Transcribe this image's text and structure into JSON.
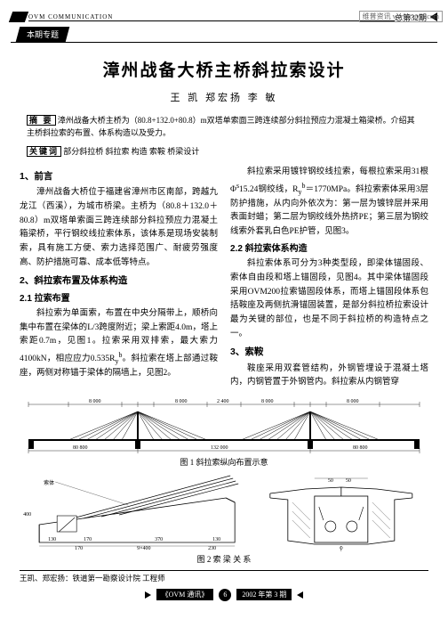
{
  "watermark": "维普资讯 www.cqvip.com",
  "header": {
    "comm_label": "OVM COMMUNICATION",
    "issue": "总第32期",
    "section_tab": "本期专题"
  },
  "title": "漳州战备大桥主桥斜拉索设计",
  "authors": "王  凯   郑宏扬   李   敏",
  "abstract": {
    "label": "摘  要",
    "text": "漳州战备大桥主桥为（80.8+132.0+80.8）m双塔单索面三跨连续部分斜拉预应力混凝土箱梁桥。介绍其主桥斜拉索的布置、体系构造以及受力。"
  },
  "keywords": {
    "label": "关键词",
    "text": "部分斜拉桥  斜拉索  构造  索鞍  桥梁设计"
  },
  "left_col": {
    "h1": "1、前言",
    "p1": "漳州战备大桥位于福建省漳州市区南部，跨越九龙江（西溪），为城市桥梁。主桥为（80.8＋132.0＋80.8）m双塔单索面三跨连续部分斜拉预应力混凝土箱梁桥，平行钢绞线拉索体系，该体系是现场安装制索，具有施工方便、索力选择范围广、耐疲劳强度高、防护措施可靠、成本低等特点。",
    "h2": "2、斜拉索布置及体系构造",
    "h21": "2.1 拉索布置",
    "p2": "斜拉索为单面索，布置在中央分隔带上，顺桥向集中布置在梁体的L/3跨度附近；梁上索距4.0m，塔上索距0.7m，见图1。拉索采用双排索，最大索力4100kN，相应应力0.535R<sub>y</sub><sup>b</sup>。斜拉索在塔上部通过鞍座，两侧对称锚于梁体的隔墙上，见图2。"
  },
  "right_col": {
    "p1": "斜拉索采用镀锌钢绞线拉索，每根拉索采用31根Φ<sup>s</sup>15.24钢绞线，R<sub>y</sub><sup>b</sup>＝1770MPa。斜拉索索体采用3层防护措施，从内向外依次为：第一层为镀锌层并采用表面封蜡；第二层为钢绞线外热挤PE；第三层为钢绞线索外套乳白色PE护管，见图3。",
    "h22": "2.2 斜拉索体系构造",
    "p2": "斜拉索体系可分为3种类型段，即梁体锚固段、索体自由段和塔上锚固段，见图4。其中梁体锚固段采用OVM200拉索锚固段体系，而塔上锚固段体系包括鞍座及两侧抗滑锚固装置，是部分斜拉桥拉索设计最为关键的部位，也是不同于斜拉桥的构造特点之一。",
    "h3": "3、索鞍",
    "p3": "鞍座采用双套管结构，外钢管埋设于混凝土塔内，内钢管置于外钢管内。斜拉索从内钢管穿"
  },
  "fig1": {
    "caption": "图 1   斜拉索纵向布置示意",
    "spans": [
      "8 000",
      "8 000",
      "2 400",
      "8 000",
      "8 000"
    ],
    "dims": [
      "80 800",
      "132 000",
      "80 800"
    ]
  },
  "fig2": {
    "caption": "图 2   索 梁 关 系",
    "left_nums": [
      "400",
      "170",
      "9×400",
      "230"
    ],
    "left_bottom": [
      "130",
      "170",
      "370",
      "130"
    ],
    "right_nums": [
      "50",
      "50"
    ]
  },
  "footer_author": "王凯、郑宏扬：铁道第一勘察设计院 工程师",
  "footer_pub": {
    "left": "《OVM 通讯》",
    "page": "6",
    "right": "2002 年第 3 期"
  }
}
